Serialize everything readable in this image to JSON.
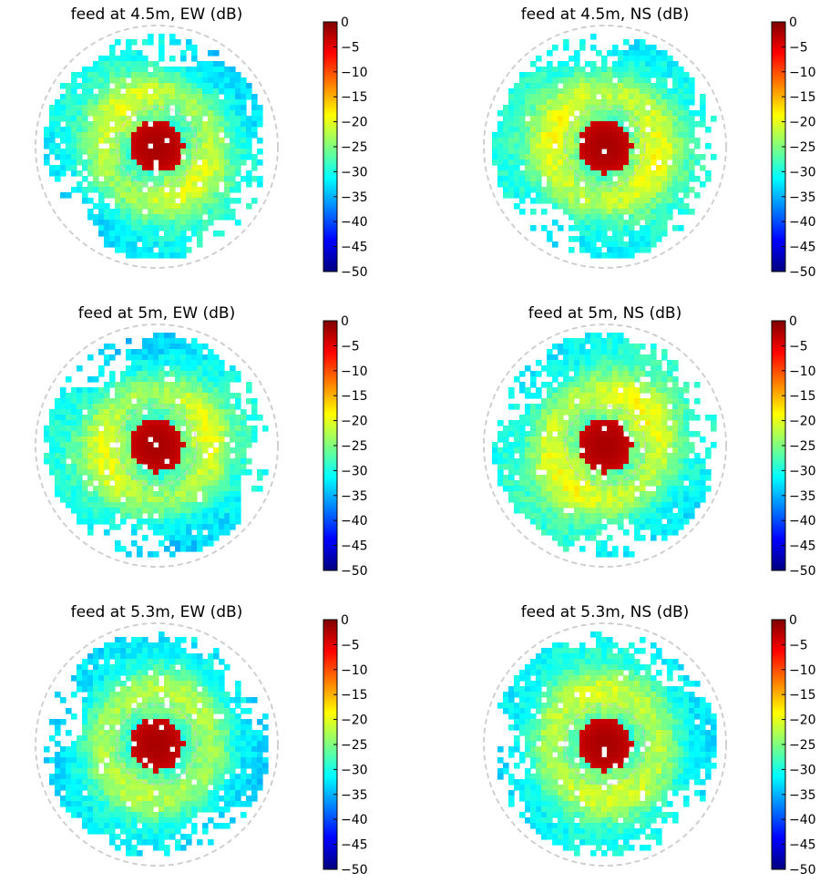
{
  "colormap": [
    "#00007f",
    "#0000ff",
    "#007fff",
    "#00ffff",
    "#7fff7f",
    "#ffff00",
    "#ff7f00",
    "#ff0000",
    "#7f0000"
  ],
  "chart_data": {
    "type": "heatmap",
    "projection": "polar all-sky beam map",
    "colorbar": {
      "label_unit": "dB",
      "ticks": [
        "0",
        "−5",
        "−10",
        "−15",
        "−20",
        "−25",
        "−30",
        "−35",
        "−40",
        "−45",
        "−50"
      ],
      "range": [
        -50,
        0
      ]
    },
    "panels": [
      {
        "title": "feed at 4.5m, EW (dB)",
        "feed_height_m": 4.5,
        "polarization": "EW",
        "peak_db": 0,
        "background_db": -28,
        "asymmetry": 0.35
      },
      {
        "title": "feed at 4.5m, NS (dB)",
        "feed_height_m": 4.5,
        "polarization": "NS",
        "peak_db": 0,
        "background_db": -27,
        "asymmetry": 0.3
      },
      {
        "title": "feed at 5m, EW (dB)",
        "feed_height_m": 5.0,
        "polarization": "EW",
        "peak_db": 0,
        "background_db": -28,
        "asymmetry": 0.4
      },
      {
        "title": "feed at 5m, NS (dB)",
        "feed_height_m": 5.0,
        "polarization": "NS",
        "peak_db": 0,
        "background_db": -27,
        "asymmetry": 0.35
      },
      {
        "title": "feed at 5.3m, EW (dB)",
        "feed_height_m": 5.3,
        "polarization": "EW",
        "peak_db": 0,
        "background_db": -29,
        "asymmetry": 0.15
      },
      {
        "title": "feed at 5.3m, NS (dB)",
        "feed_height_m": 5.3,
        "polarization": "NS",
        "peak_db": 0,
        "background_db": -28,
        "asymmetry": 0.2
      }
    ]
  }
}
